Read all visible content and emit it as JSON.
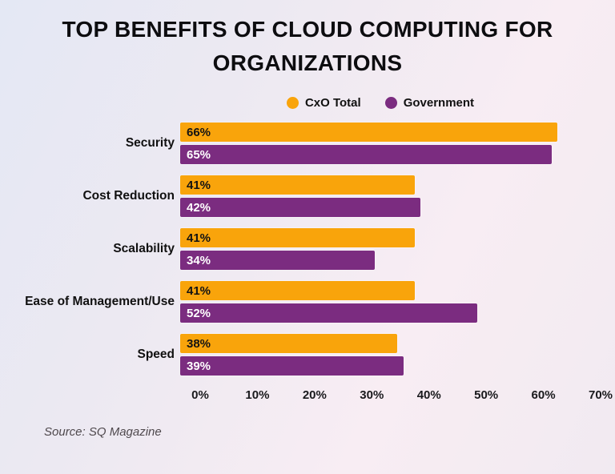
{
  "title": "TOP BENEFITS OF CLOUD COMPUTING FOR ORGANIZATIONS",
  "source": "Source: SQ Magazine",
  "colors": {
    "cxo_total": "#F9A40B",
    "government": "#7B2C80",
    "title_text": "#0d0d10",
    "axis_text": "#19191c"
  },
  "chart_data": {
    "type": "bar",
    "orientation": "horizontal",
    "title": "TOP BENEFITS OF CLOUD COMPUTING FOR ORGANIZATIONS",
    "categories": [
      "Security",
      "Cost Reduction",
      "Scalability",
      "Ease of Management/Use",
      "Speed"
    ],
    "series": [
      {
        "name": "CxO Total",
        "color": "#F9A40B",
        "label_color": "#131313",
        "values": [
          66,
          41,
          41,
          41,
          38
        ]
      },
      {
        "name": "Government",
        "color": "#7B2C80",
        "label_color": "#FFFFFF",
        "values": [
          65,
          42,
          34,
          52,
          39
        ]
      }
    ],
    "value_suffix": "%",
    "x_ticks": [
      "0%",
      "10%",
      "20%",
      "30%",
      "40%",
      "50%",
      "60%",
      "70%"
    ],
    "xlim": [
      0,
      70
    ],
    "grid": false,
    "legend_position": "top"
  }
}
